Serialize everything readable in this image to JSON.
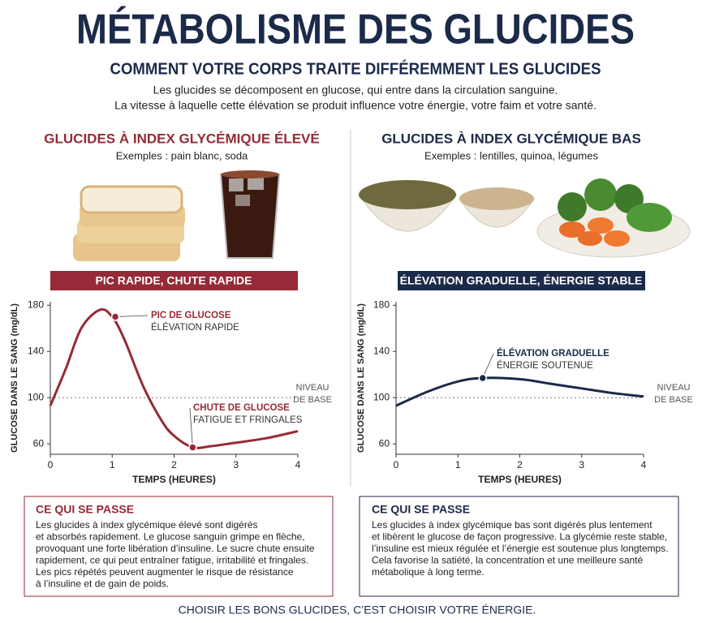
{
  "header": {
    "title": "MÉTABOLISME DES GLUCIDES",
    "subtitle": "COMMENT VOTRE CORPS TRAITE DIFFÉREMMENT LES GLUCIDES",
    "intro": [
      "Les glucides se décomposent en glucose, qui entre dans la circulation sanguine.",
      "La vitesse à laquelle cette élévation se produit influence votre énergie, votre faim et votre santé."
    ]
  },
  "panels": [
    {
      "title": "GLUCIDES À INDEX GLYCÉMIQUE ÉLEVÉ",
      "examples": "Exemples : pain blanc, soda",
      "banner": "PIC RAPIDE, CHUTE RAPIDE",
      "box_title": "CE QUI SE PASSE",
      "box_lines": [
        "Les glucides à index glycémique élevé sont digérés",
        "et absorbés rapidement. Le glucose sanguin grimpe en flèche,",
        "provoquant une forte libération d’insuline. Le sucre chute ensuite",
        "rapidement, ce qui peut entraîner fatigue, irritabilité et fringales.",
        "Les pics répétés peuvent augmenter le risque de résistance",
        "à l’insuline et de gain de poids."
      ]
    },
    {
      "title": "GLUCIDES À INDEX GLYCÉMIQUE BAS",
      "examples": "Exemples : lentilles, quinoa, légumes",
      "banner": "ÉLÉVATION GRADUELLE, ÉNERGIE STABLE",
      "box_title": "CE QUI SE PASSE",
      "box_lines": [
        "Les glucides à index glycémique bas sont digérés plus lentement",
        "et libèrent le glucose de façon progressive. La glycémie reste stable,",
        "l’insuline est mieux régulée et l’énergie est soutenue plus longtemps.",
        "Cela favorise la satiété, la concentration et une meilleure santé",
        "métabolique à long terme."
      ]
    }
  ],
  "chart_data": [
    {
      "type": "line",
      "x_label": "TEMPS (HEURES)",
      "y_label": "GLUCOSE DANS LE SANG (mg/dL)",
      "x": [
        0,
        0.25,
        0.5,
        0.8,
        1.0,
        1.2,
        1.5,
        1.8,
        2.0,
        2.3,
        2.6,
        3.0,
        3.5,
        4.0
      ],
      "values": [
        93,
        125,
        160,
        176,
        170,
        150,
        110,
        80,
        67,
        57,
        58,
        61,
        65,
        71
      ],
      "color": "#962a36",
      "xlim": [
        0,
        4
      ],
      "ylim": [
        51,
        183
      ],
      "xticks": [
        0,
        1,
        2,
        3,
        4
      ],
      "yticks": [
        60,
        100,
        140,
        180
      ],
      "baseline": 100,
      "baseline_label": [
        "NIVEAU",
        "DE BASE"
      ],
      "annotations": [
        {
          "x": 1.05,
          "y": 170,
          "lines": [
            "PIC DE GLUCOSE",
            "ÉLÉVATION RAPIDE"
          ]
        },
        {
          "x": 2.3,
          "y": 57,
          "lines": [
            "CHUTE DE GLUCOSE",
            "FATIGUE ET FRINGALES"
          ]
        }
      ]
    },
    {
      "type": "line",
      "x_label": "TEMPS (HEURES)",
      "y_label": "GLUCOSE DANS LE SANG (mg/dL)",
      "x": [
        0,
        0.5,
        1.0,
        1.4,
        2.0,
        2.5,
        3.0,
        3.5,
        4.0
      ],
      "values": [
        93,
        105,
        114,
        117,
        116,
        112,
        108,
        104,
        101
      ],
      "color": "#1c2a4a",
      "xlim": [
        0,
        4
      ],
      "ylim": [
        51,
        183
      ],
      "xticks": [
        0,
        1,
        2,
        3,
        4
      ],
      "yticks": [
        60,
        100,
        140,
        180
      ],
      "baseline": 100,
      "baseline_label": [
        "NIVEAU",
        "DE BASE"
      ],
      "annotations": [
        {
          "x": 1.4,
          "y": 117,
          "lines": [
            "ÉLÉVATION GRADUELLE",
            "ÉNERGIE SOUTENUE"
          ]
        }
      ]
    }
  ],
  "footer": "CHOISIR LES BONS GLUCIDES, C’EST CHOISIR VOTRE ÉNERGIE."
}
